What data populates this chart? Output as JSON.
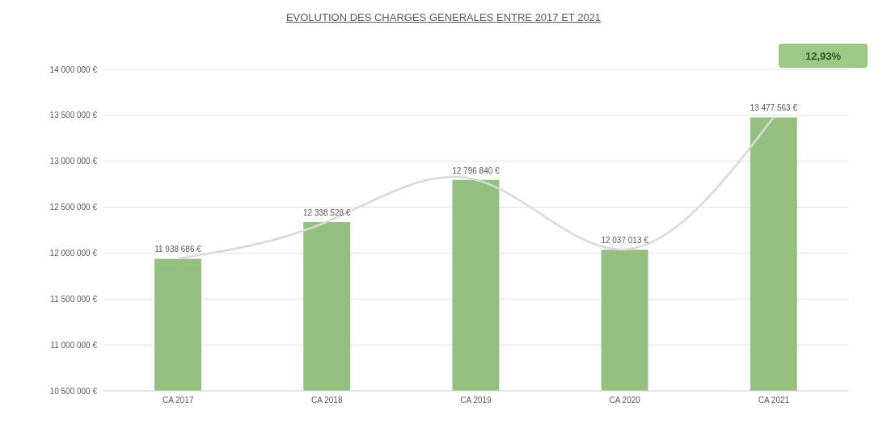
{
  "chart_data": {
    "type": "bar",
    "title": "EVOLUTION DES CHARGES GENERALES ENTRE 2017 ET 2021",
    "categories": [
      "CA 2017",
      "CA 2018",
      "CA 2019",
      "CA 2020",
      "CA 2021"
    ],
    "series": [
      {
        "color": "#93bf7f",
        "values": [
          11938686,
          12338528,
          12796840,
          12037013,
          13477563
        ],
        "value_labels": [
          "11 938 686 €",
          "12 338 528 €",
          "12 796 840 €",
          "12 037 013 €",
          "13 477 563 €"
        ]
      },
      {
        "type": "line",
        "color": "#d9d9d9",
        "values": [
          11940000,
          12340000,
          12800000,
          12040000,
          13480000
        ]
      }
    ],
    "ylim": [
      10500000,
      14000000
    ],
    "yticks": [
      {
        "value": 10500000,
        "label": "10 500 000 €"
      },
      {
        "value": 11000000,
        "label": "11 000 000 €"
      },
      {
        "value": 11500000,
        "label": "11 500 000 €"
      },
      {
        "value": 12000000,
        "label": "12 000 000 €"
      },
      {
        "value": 12500000,
        "label": "12 500 000 €"
      },
      {
        "value": 13000000,
        "label": "13 000 000 €"
      },
      {
        "value": 13500000,
        "label": "13 500 000 €"
      },
      {
        "value": 14000000,
        "label": "14 000 000 €"
      }
    ],
    "grid": "y",
    "legend": false,
    "annotations": [
      "12,93%"
    ]
  }
}
